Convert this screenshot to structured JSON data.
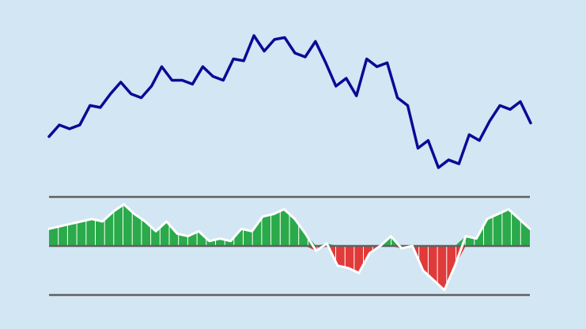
{
  "chart_data": [
    {
      "type": "line",
      "title": "",
      "xlabel": "",
      "ylabel": "",
      "grid": false,
      "legend": "none",
      "series": [
        {
          "values": [
            10.0,
            13.0,
            12.0,
            13.0,
            18.0,
            17.5,
            21.0,
            24.0,
            21.0,
            20.0,
            23.0,
            28.0,
            24.5,
            24.5,
            23.5,
            28.0,
            25.5,
            24.5,
            30.0,
            29.5,
            36.0,
            32.0,
            35.0,
            35.5,
            31.5,
            30.5,
            34.5,
            29.0,
            23.0,
            25.0,
            20.5,
            30.0,
            28.0,
            29.0,
            20.0,
            18.0,
            7.0,
            9.0,
            2.0,
            4.0,
            3.0,
            10.5,
            9.0,
            14.0,
            18.0,
            17.0,
            19.0,
            13.5
          ]
        }
      ],
      "colors": {
        "line": "#0a0a96"
      }
    },
    {
      "type": "bar",
      "title": "",
      "xlabel": "",
      "ylabel": "",
      "grid": false,
      "legend": "none",
      "ylim": [
        -1,
        1
      ],
      "reference_lines": [
        1,
        0,
        -1
      ],
      "series": [
        {
          "values": [
            0.35,
            0.4,
            0.45,
            0.5,
            0.55,
            0.5,
            0.7,
            0.85,
            0.65,
            0.5,
            0.3,
            0.5,
            0.25,
            0.2,
            0.3,
            0.1,
            0.15,
            0.1,
            0.35,
            0.3,
            0.6,
            0.65,
            0.75,
            0.55,
            0.25,
            -0.1,
            0.05,
            -0.4,
            -0.45,
            -0.55,
            -0.15,
            0.0,
            0.2,
            -0.05,
            0.0,
            -0.5,
            -0.7,
            -0.9,
            -0.4,
            0.2,
            0.15,
            0.55,
            0.65,
            0.75,
            0.55,
            0.35
          ]
        }
      ],
      "colors": {
        "positive": "#2aaa4a",
        "negative": "#e03a3a",
        "outline": "#ffffff",
        "reference_line": "#606060"
      }
    }
  ],
  "colors": {
    "background": "#d2e6f3"
  }
}
